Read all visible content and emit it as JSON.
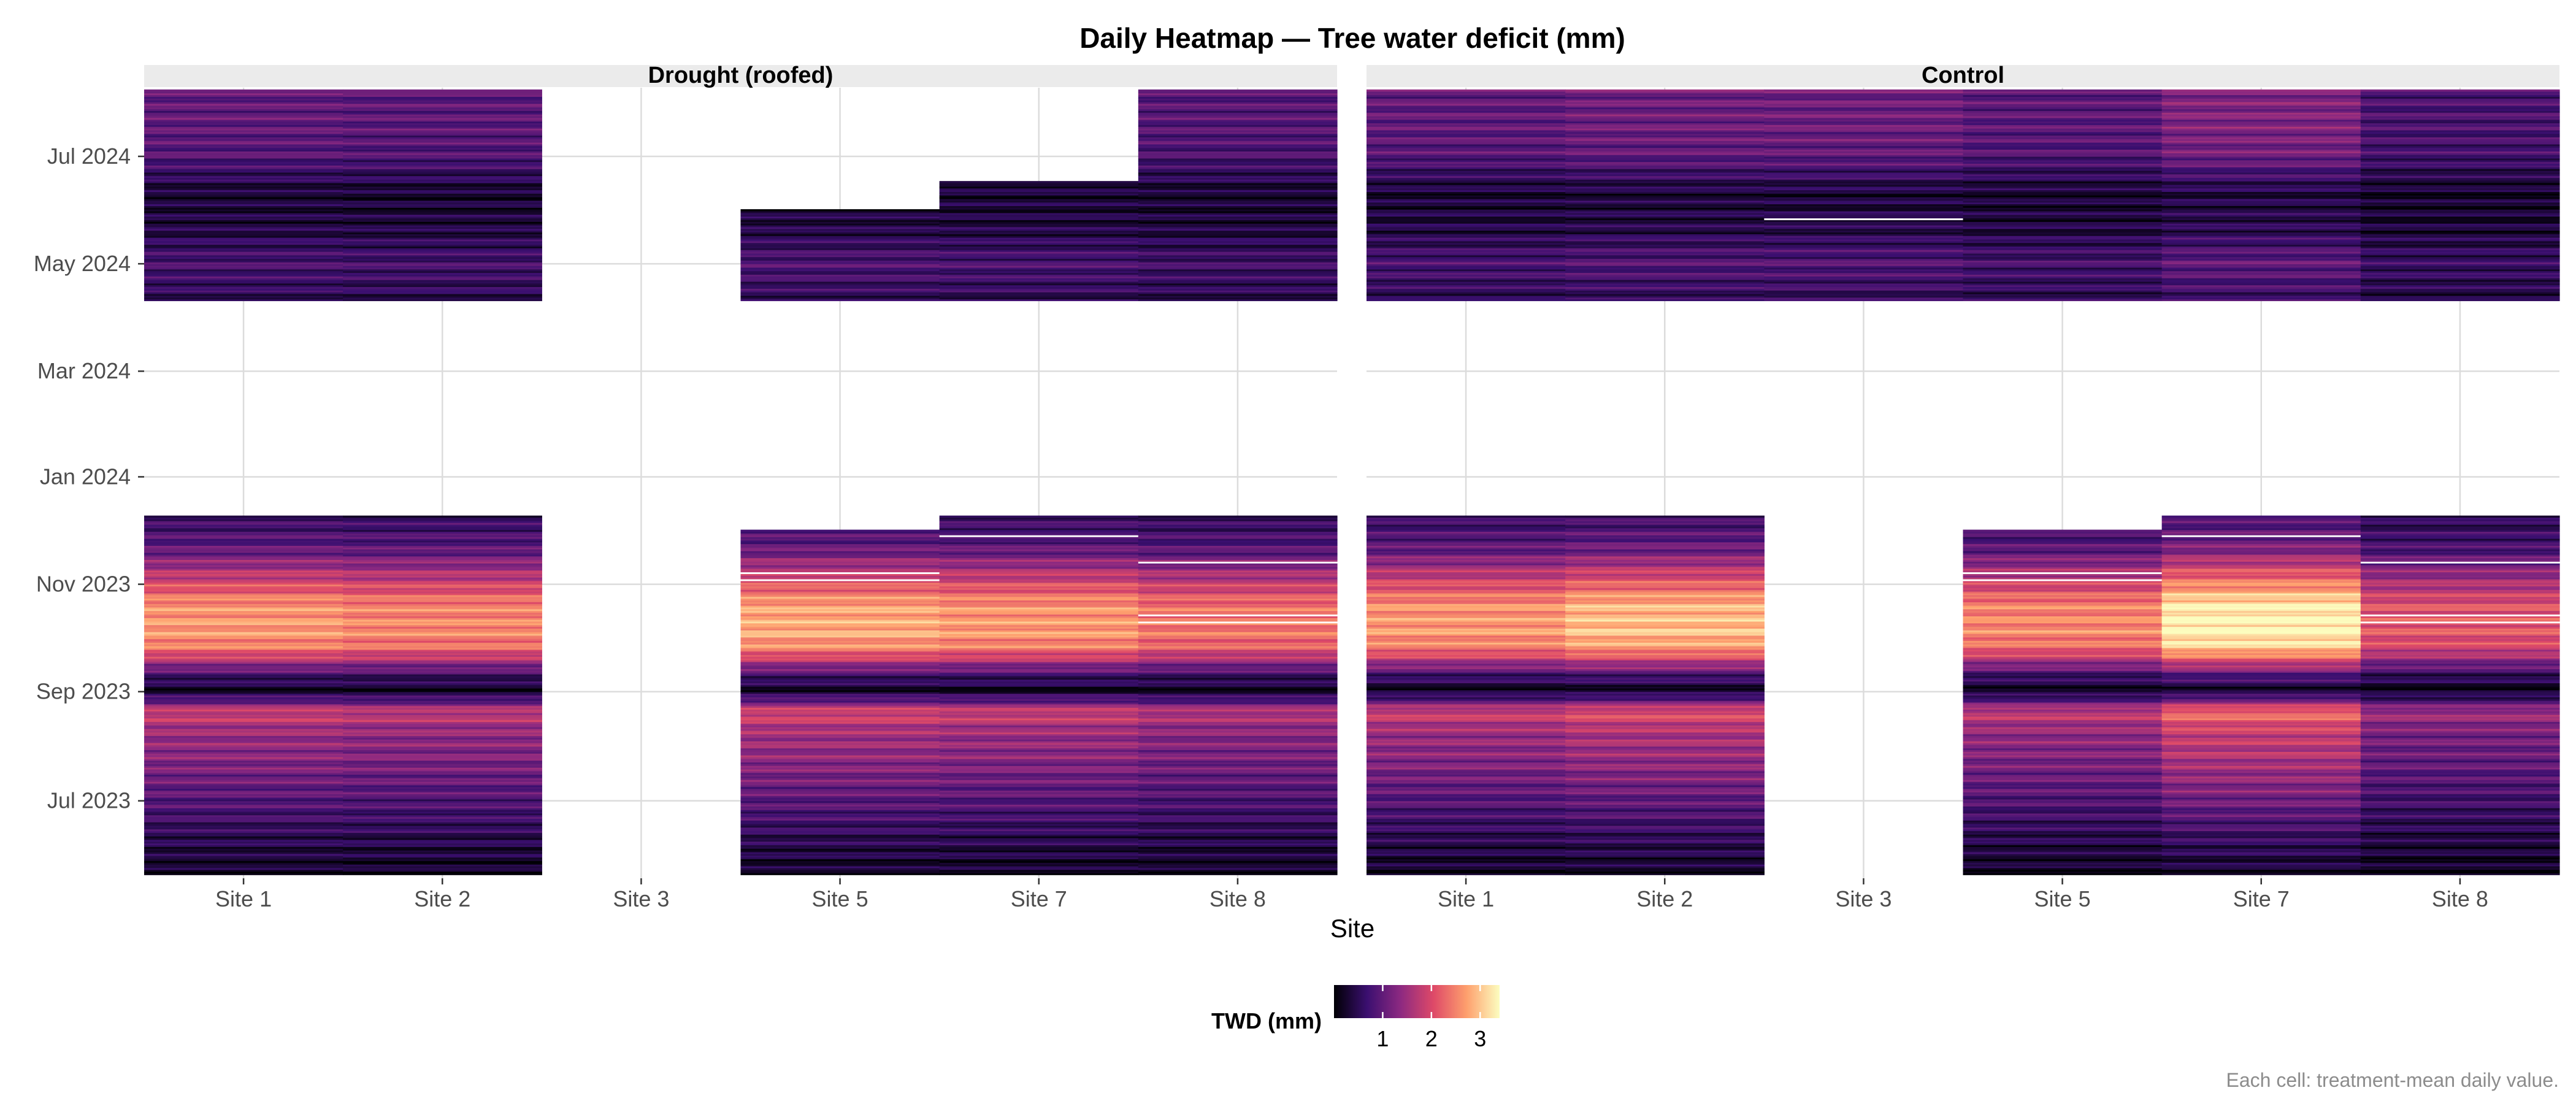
{
  "chart_data": {
    "type": "heatmap",
    "title": "Daily Heatmap — Tree water deficit (mm)",
    "xlabel": "Site",
    "ylabel": "",
    "caption": "Each cell: treatment-mean daily value.",
    "legend": {
      "title": "TWD (mm)",
      "position": "bottom",
      "ticks": [
        1,
        2,
        3
      ],
      "range": [
        0,
        3.4
      ],
      "palette": [
        "#000004",
        "#3b0f70",
        "#8c2981",
        "#de4968",
        "#fe9f6d",
        "#fcfdbf"
      ]
    },
    "categories": [
      "Site 1",
      "Site 2",
      "Site 3",
      "Site 5",
      "Site 7",
      "Site 8"
    ],
    "y_axis": {
      "ticks": [
        "2023-07-01",
        "2023-09-01",
        "2023-11-01",
        "2024-01-01",
        "2024-03-01",
        "2024-05-01",
        "2024-07-01"
      ],
      "tick_labels": [
        "Jul 2023",
        "Sep 2023",
        "Nov 2023",
        "Jan 2024",
        "Mar 2024",
        "May 2024",
        "Jul 2024"
      ],
      "range": [
        "2023-05-18",
        "2024-08-09"
      ],
      "grid": true
    },
    "panels": [
      {
        "name": "Drought (roofed)",
        "sites": [
          {
            "site": "Site 1",
            "periods": [
              [
                "2023-05-20",
                "2023-12-10"
              ],
              [
                "2024-04-10",
                "2024-08-08"
              ]
            ],
            "gaps": []
          },
          {
            "site": "Site 2",
            "periods": [
              [
                "2023-05-20",
                "2023-12-10"
              ],
              [
                "2024-04-10",
                "2024-08-08"
              ]
            ],
            "gaps": []
          },
          {
            "site": "Site 3",
            "periods": [],
            "gaps": []
          },
          {
            "site": "Site 5",
            "periods": [
              [
                "2023-05-20",
                "2023-12-02"
              ],
              [
                "2024-04-10",
                "2024-06-01"
              ]
            ],
            "gaps": [
              "2023-11-03",
              "2023-11-07"
            ]
          },
          {
            "site": "Site 7",
            "periods": [
              [
                "2023-05-20",
                "2023-12-10"
              ],
              [
                "2024-04-10",
                "2024-06-17"
              ]
            ],
            "gaps": [
              "2023-11-28"
            ]
          },
          {
            "site": "Site 8",
            "periods": [
              [
                "2023-05-20",
                "2023-12-10"
              ],
              [
                "2024-04-10",
                "2024-08-08"
              ]
            ],
            "gaps": [
              "2023-11-13",
              "2023-10-10",
              "2023-10-14"
            ]
          }
        ]
      },
      {
        "name": "Control",
        "sites": [
          {
            "site": "Site 1",
            "periods": [
              [
                "2023-05-20",
                "2023-12-10"
              ],
              [
                "2024-04-10",
                "2024-08-08"
              ]
            ],
            "gaps": []
          },
          {
            "site": "Site 2",
            "periods": [
              [
                "2023-05-20",
                "2023-12-10"
              ],
              [
                "2024-04-10",
                "2024-08-08"
              ]
            ],
            "gaps": []
          },
          {
            "site": "Site 3",
            "periods": [
              [
                "2024-04-10",
                "2024-08-08"
              ]
            ],
            "gaps": [
              "2024-05-26"
            ]
          },
          {
            "site": "Site 5",
            "periods": [
              [
                "2023-05-20",
                "2023-12-02"
              ],
              [
                "2024-04-10",
                "2024-08-08"
              ]
            ],
            "gaps": [
              "2023-11-03",
              "2023-11-07"
            ]
          },
          {
            "site": "Site 7",
            "periods": [
              [
                "2023-05-20",
                "2023-12-10"
              ],
              [
                "2024-04-10",
                "2024-08-08"
              ]
            ],
            "gaps": [
              "2023-11-28"
            ]
          },
          {
            "site": "Site 8",
            "periods": [
              [
                "2023-05-20",
                "2023-12-10"
              ],
              [
                "2024-04-10",
                "2024-08-08"
              ]
            ],
            "gaps": [
              "2023-11-13",
              "2023-10-10",
              "2023-10-14"
            ]
          }
        ]
      }
    ],
    "seasonal_profile": {
      "dates": [
        "2023-05-20",
        "2023-06-10",
        "2023-07-01",
        "2023-07-25",
        "2023-08-10",
        "2023-08-20",
        "2023-09-01",
        "2023-09-10",
        "2023-09-25",
        "2023-10-05",
        "2023-10-20",
        "2023-11-05",
        "2023-11-20",
        "2023-12-10",
        "2024-04-10",
        "2024-05-01",
        "2024-05-20",
        "2024-06-10",
        "2024-07-01",
        "2024-07-20",
        "2024-08-08"
      ],
      "values": [
        0.2,
        0.5,
        0.9,
        1.3,
        1.5,
        1.9,
        0.2,
        0.7,
        2.4,
        2.7,
        2.6,
        1.8,
        1.0,
        0.6,
        0.5,
        0.8,
        0.4,
        0.3,
        0.9,
        1.0,
        1.0
      ]
    },
    "site_factors": [
      {
        "site": "Site 1",
        "drought": 1.0,
        "control": 1.0
      },
      {
        "site": "Site 2",
        "drought": 0.95,
        "control": 1.1
      },
      {
        "site": "Site 3",
        "drought": 0.0,
        "control": 1.1
      },
      {
        "site": "Site 5",
        "drought": 1.05,
        "control": 0.95
      },
      {
        "site": "Site 7",
        "drought": 1.0,
        "control": 1.25
      },
      {
        "site": "Site 8",
        "drought": 0.9,
        "control": 0.8
      }
    ]
  }
}
